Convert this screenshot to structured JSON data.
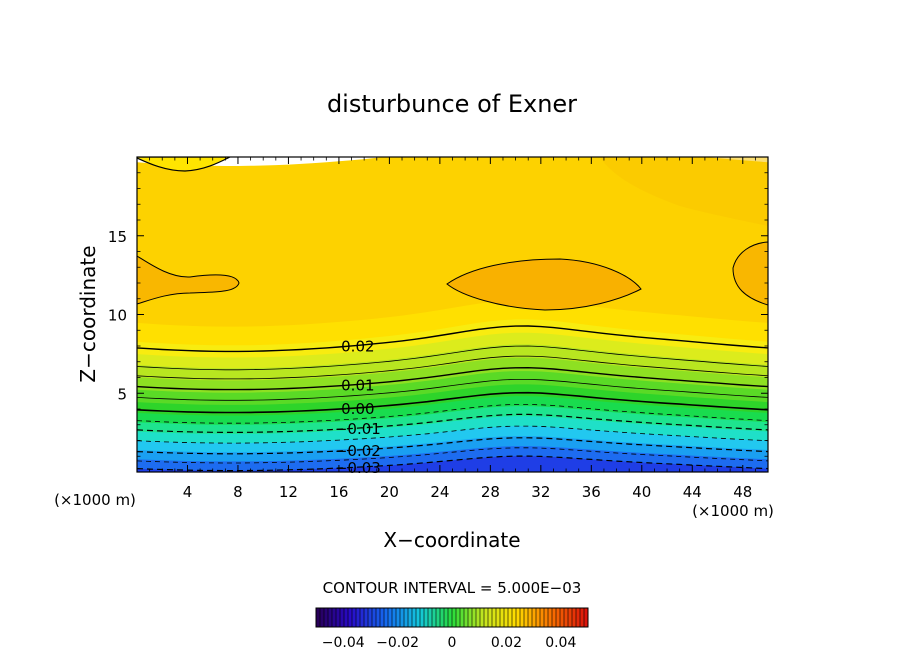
{
  "chart_data": {
    "type": "contour",
    "title": "disturbunce of Exner",
    "xlabel": "X−coordinate",
    "ylabel": "Z−coordinate",
    "x_unit_label": "(×1000 m)",
    "z_unit_label": "(×1000 m)",
    "xlim": [
      0,
      50
    ],
    "ylim": [
      0,
      20
    ],
    "x_ticks": [
      4,
      8,
      12,
      16,
      20,
      24,
      28,
      32,
      36,
      40,
      44,
      48
    ],
    "x_tick_labels": [
      "4",
      "8",
      "12",
      "16",
      "20",
      "24",
      "28",
      "32",
      "36",
      "40",
      "44",
      "48"
    ],
    "y_ticks": [
      5,
      10,
      15
    ],
    "y_tick_labels": [
      "5",
      "10",
      "15"
    ],
    "contour_interval_text": "CONTOUR INTERVAL = 5.000E−03",
    "contour_labels": [
      {
        "text": "0.02",
        "x": 17.5,
        "z": 8.2
      },
      {
        "text": "0.01",
        "x": 17.5,
        "z": 5.7
      },
      {
        "text": "0.00",
        "x": 17.5,
        "z": 4.2
      },
      {
        "text": "−0.01",
        "x": 17.5,
        "z": 2.9
      },
      {
        "text": "−0.02",
        "x": 17.5,
        "z": 1.5
      },
      {
        "text": "−0.03",
        "x": 17.5,
        "z": 0.4
      }
    ],
    "bands": [
      {
        "z": 0.4,
        "color": "#1f3ee6"
      },
      {
        "z": 1.0,
        "color": "#1d6cf0"
      },
      {
        "z": 1.6,
        "color": "#1a9ff2"
      },
      {
        "z": 2.2,
        "color": "#22c8f0"
      },
      {
        "z": 2.8,
        "color": "#1fe0c8"
      },
      {
        "z": 3.4,
        "color": "#1ee48e"
      },
      {
        "z": 4.0,
        "color": "#19dc4e"
      },
      {
        "z": 4.7,
        "color": "#2ed42a"
      },
      {
        "z": 5.5,
        "color": "#5ada26"
      },
      {
        "z": 6.3,
        "color": "#8ee022"
      },
      {
        "z": 7.1,
        "color": "#b8e620"
      },
      {
        "z": 7.8,
        "color": "#dcec1c"
      },
      {
        "z": 8.6,
        "color": "#f8ec10"
      },
      {
        "z": 9.8,
        "color": "#ffe000"
      },
      {
        "z": 20.0,
        "color": "#fdd200"
      }
    ],
    "colorbar": {
      "range": [
        -0.05,
        0.05
      ],
      "tick_values": [
        -0.04,
        -0.02,
        0,
        0.02,
        0.04
      ],
      "tick_labels": [
        "−0.04",
        "−0.02",
        "0",
        "0.02",
        "0.04"
      ]
    }
  }
}
